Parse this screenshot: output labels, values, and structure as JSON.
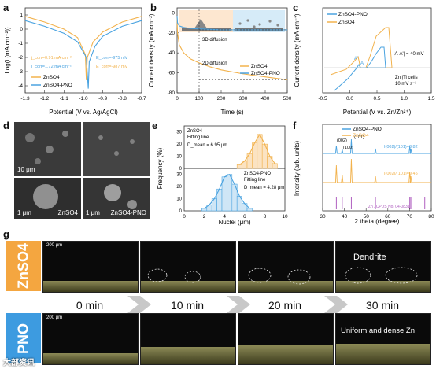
{
  "panels": {
    "a": {
      "label": "a"
    },
    "b": {
      "label": "b"
    },
    "c": {
      "label": "c"
    },
    "d": {
      "label": "d"
    },
    "e": {
      "label": "e"
    },
    "f": {
      "label": "f"
    },
    "g": {
      "label": "g"
    }
  },
  "chart_data": [
    {
      "id": "a",
      "type": "line",
      "xlabel": "Potential (V vs. Ag/AgCl)",
      "ylabel": "Log(i (mA cm⁻²))",
      "xticks": [
        "-1.3",
        "-1.2",
        "-1.1",
        "-1.0",
        "-0.9",
        "-0.8",
        "-0.7"
      ],
      "yticks": [
        "1",
        "0",
        "-1",
        "-2",
        "-3",
        "-4"
      ],
      "xlim": [
        -1.3,
        -0.7
      ],
      "ylim": [
        -4.5,
        1.5
      ],
      "series": [
        {
          "name": "ZnSO4",
          "color": "#f2b24c",
          "x": [
            -1.3,
            -1.2,
            -1.1,
            -1.03,
            -0.99,
            -0.985,
            -0.98,
            -0.95,
            -0.9,
            -0.8,
            -0.7
          ],
          "y": [
            0.9,
            0.5,
            0.0,
            -0.6,
            -1.8,
            -3.6,
            -2.0,
            -0.9,
            -0.2,
            0.5,
            0.9
          ]
        },
        {
          "name": "ZnSO4-PNO",
          "color": "#4aa3e0",
          "x": [
            -1.3,
            -1.2,
            -1.1,
            -1.03,
            -0.985,
            -0.975,
            -0.97,
            -0.94,
            -0.9,
            -0.8,
            -0.7
          ],
          "y": [
            0.6,
            0.2,
            -0.3,
            -0.9,
            -2.0,
            -4.2,
            -2.3,
            -1.2,
            -0.5,
            0.2,
            0.6
          ]
        }
      ],
      "annotations": [
        {
          "text": "j_corr=0.91 mA cm⁻²",
          "color": "#f2b24c"
        },
        {
          "text": "j_corr=1.72 mA cm⁻²",
          "color": "#4aa3e0"
        },
        {
          "text": "E_corr=-975 mV",
          "color": "#4aa3e0"
        },
        {
          "text": "E_corr=-987 mV",
          "color": "#f2b24c"
        }
      ],
      "legend": [
        {
          "name": "ZnSO4",
          "color": "#f2b24c"
        },
        {
          "name": "ZnSO4-PNO",
          "color": "#4aa3e0"
        }
      ]
    },
    {
      "id": "b",
      "type": "line",
      "xlabel": "Time (s)",
      "ylabel": "Current density (mA cm⁻²)",
      "xticks": [
        "0",
        "100",
        "200",
        "300",
        "400",
        "500"
      ],
      "yticks": [
        "0",
        "-20",
        "-40",
        "-60",
        "-80"
      ],
      "xlim": [
        0,
        500
      ],
      "ylim": [
        -80,
        5
      ],
      "series": [
        {
          "name": "ZnSO4",
          "color": "#f2b24c",
          "x": [
            0,
            2,
            10,
            30,
            60,
            100,
            150,
            200,
            300,
            400,
            500
          ],
          "y": [
            -5,
            -20,
            -32,
            -40,
            -46,
            -50,
            -54,
            -57,
            -61,
            -64,
            -67
          ]
        },
        {
          "name": "ZnSO4-PNO",
          "color": "#4aa3e0",
          "x": [
            0,
            2,
            10,
            30,
            60,
            100,
            150,
            200,
            300,
            400,
            500
          ],
          "y": [
            -3,
            -10,
            -13,
            -14.5,
            -15.5,
            -16,
            -16.5,
            -17,
            -17,
            -17,
            -17
          ]
        }
      ],
      "annotations": [
        {
          "text": "3D diffusion"
        },
        {
          "text": "2D diffusion"
        }
      ],
      "legend": [
        {
          "name": "ZnSO4",
          "color": "#f2b24c"
        },
        {
          "name": "ZnSO4-PNO",
          "color": "#4aa3e0"
        }
      ]
    },
    {
      "id": "c",
      "type": "line",
      "xlabel": "Potential (V vs. Zn/Zn²⁺)",
      "ylabel": "Current density (mA cm⁻²)",
      "xticks": [
        "-0.5",
        "0.0",
        "0.5",
        "1.0",
        "1.5"
      ],
      "xlim": [
        -0.5,
        1.5
      ],
      "series": [
        {
          "name": "ZnSO4-PNO",
          "color": "#4aa3e0"
        },
        {
          "name": "ZnSO4",
          "color": "#f2b24c"
        }
      ],
      "annotations": [
        {
          "text": "|A-A'| = 40 mV"
        },
        {
          "text": "Zn||Ti cells"
        },
        {
          "text": "10 mV s⁻¹"
        },
        {
          "text": "A"
        },
        {
          "text": "A'"
        }
      ],
      "legend": [
        {
          "name": "ZnSO4-PNO",
          "color": "#4aa3e0"
        },
        {
          "name": "ZnSO4",
          "color": "#f2b24c"
        }
      ]
    },
    {
      "id": "e",
      "type": "bar",
      "xlabel": "Nuclei (μm)",
      "ylabel": "Frequency (%)",
      "xticks": [
        "0",
        "2",
        "4",
        "6",
        "8",
        "10"
      ],
      "yticks_top": [
        "0",
        "10",
        "20",
        "30"
      ],
      "yticks_bottom": [
        "0",
        "10",
        "20",
        "30"
      ],
      "xlim": [
        0,
        10
      ],
      "series": [
        {
          "name": "ZnSO4",
          "color": "#f2b24c",
          "bins": [
            5.5,
            6,
            6.5,
            7,
            7.5,
            8,
            8.5,
            9
          ],
          "values": [
            3,
            6,
            12,
            21,
            28,
            20,
            10,
            4
          ],
          "mean_label": "D_mean = 6.95 μm"
        },
        {
          "name": "ZnSO4-PNO",
          "color": "#4aa3e0",
          "bins": [
            2,
            2.5,
            3,
            3.5,
            4,
            4.5,
            5,
            5.5,
            6,
            6.5
          ],
          "values": [
            2,
            5,
            10,
            18,
            28,
            30,
            22,
            12,
            6,
            2
          ],
          "mean_label": "D_mean = 4.28 μm"
        }
      ],
      "legend": [
        {
          "name": "ZnSO4"
        },
        {
          "name": "Fitting line"
        },
        {
          "name": "ZnSO4-PNO"
        },
        {
          "name": "Fitting line"
        }
      ]
    },
    {
      "id": "f",
      "type": "line",
      "xlabel": "2 theta (degree)",
      "ylabel": "Intensity (arb. units)",
      "xticks": [
        "30",
        "40",
        "50",
        "60",
        "70",
        "80"
      ],
      "xlim": [
        30,
        80
      ],
      "series": [
        {
          "name": "ZnSO4-PNO",
          "color": "#4aa3e0",
          "peaks": [
            36.3,
            39.0,
            43.2,
            54.3,
            70.1,
            70.6
          ]
        },
        {
          "name": "ZnSO4",
          "color": "#f2b24c",
          "peaks": [
            36.3,
            39.0,
            43.2,
            54.3,
            70.1,
            70.6
          ]
        },
        {
          "name": "Zn JCPDS No. 04-0831",
          "color": "#b060c0",
          "peaks": [
            36.3,
            39.0,
            43.2,
            54.3,
            70.1,
            70.6,
            77.0
          ]
        }
      ],
      "annotations": [
        {
          "text": "(002)"
        },
        {
          "text": "(100)"
        },
        {
          "text": "(101)"
        },
        {
          "text": "I(002)/(101)=0.82"
        },
        {
          "text": "I(002)/(101)=0.45"
        }
      ],
      "legend": [
        {
          "name": "ZnSO4-PNO",
          "color": "#4aa3e0"
        },
        {
          "name": "ZnSO4",
          "color": "#f2b24c"
        }
      ]
    }
  ],
  "d": {
    "scale_top": "10 μm",
    "scale_bottom": "1 μm",
    "label_left": "ZnSO4",
    "label_right": "ZnSO4-PNO"
  },
  "g": {
    "row1_label": "ZnSO4",
    "row2_label": "PNO",
    "scale": "200 μm",
    "times": [
      "0 min",
      "10 min",
      "20 min",
      "30 min"
    ],
    "dendrite_label": "Dendrite",
    "uniform_label": "Uniform and dense Zn",
    "row1_color": "#f4a640",
    "row2_color": "#3d9be0"
  },
  "watermark": "大部资讯"
}
